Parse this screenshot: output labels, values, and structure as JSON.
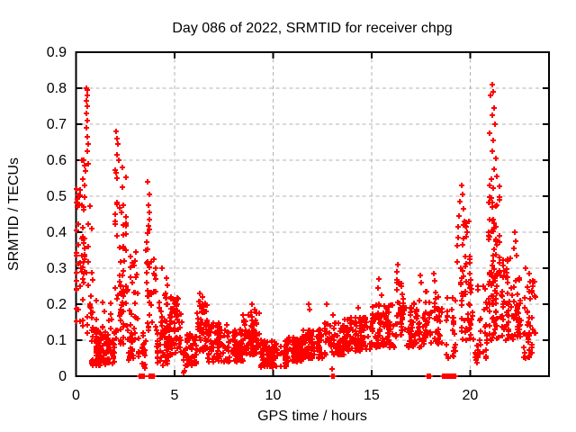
{
  "chart": {
    "title": "Day 086 of 2022, SRMTID for receiver chpg",
    "xlabel": "GPS time / hours",
    "ylabel": "SRMTID / TECUs"
  },
  "colors": {
    "marker": "#ff0000",
    "grid": "#b3b3b3",
    "axis": "#000000",
    "text": "#000000",
    "background": "#ffffff"
  },
  "chart_data": {
    "type": "scatter",
    "title": "Day 086 of 2022, SRMTID for receiver chpg",
    "xlabel": "GPS time / hours",
    "ylabel": "SRMTID / TECUs",
    "xlim": [
      0,
      24
    ],
    "ylim": [
      0,
      0.9
    ],
    "x_ticks": [
      [
        0,
        "0"
      ],
      [
        5,
        "5"
      ],
      [
        10,
        "10"
      ],
      [
        15,
        "15"
      ],
      [
        20,
        "20"
      ]
    ],
    "y_ticks": [
      [
        0,
        "0"
      ],
      [
        0.1,
        "0.1"
      ],
      [
        0.2,
        "0.2"
      ],
      [
        0.3,
        "0.3"
      ],
      [
        0.4,
        "0.4"
      ],
      [
        0.5,
        "0.5"
      ],
      [
        0.6,
        "0.6"
      ],
      [
        0.7,
        "0.7"
      ],
      [
        0.8,
        "0.8"
      ],
      [
        0.9,
        "0.9"
      ]
    ],
    "grid": {
      "style": "dashed",
      "x_at": [
        5,
        10,
        15,
        20
      ],
      "y_at": [
        0.1,
        0.2,
        0.3,
        0.4,
        0.5,
        0.6,
        0.7,
        0.8
      ]
    },
    "marker": {
      "shape": "plus",
      "color": "#ff0000",
      "size": 7
    },
    "legend": "none",
    "seed": 20220086,
    "bands": [
      [
        0.02,
        0.22,
        0.15,
        0.52,
        25,
        1.2
      ],
      [
        0.3,
        0.8,
        0.28,
        0.62,
        32,
        1.25
      ],
      [
        0.3,
        0.85,
        0.12,
        0.3,
        20,
        1.2
      ],
      [
        0.8,
        1.95,
        0.03,
        0.13,
        135,
        1.3
      ],
      [
        1.0,
        1.9,
        0.13,
        0.22,
        12,
        1.2
      ],
      [
        1.95,
        2.6,
        0.2,
        0.58,
        48,
        1.25
      ],
      [
        1.95,
        2.6,
        0.08,
        0.2,
        22,
        1.2
      ],
      [
        2.6,
        3.2,
        0.1,
        0.35,
        30,
        1.3
      ],
      [
        2.6,
        3.25,
        0.04,
        0.12,
        24,
        1.2
      ],
      [
        3.3,
        3.55,
        0.02,
        0.12,
        18,
        1.2
      ],
      [
        3.55,
        4.05,
        0.12,
        0.42,
        36,
        1.3
      ],
      [
        4.05,
        4.75,
        0.03,
        0.15,
        55,
        1.3
      ],
      [
        4.15,
        4.65,
        0.15,
        0.28,
        18,
        1.2
      ],
      [
        4.75,
        5.45,
        0.06,
        0.22,
        62,
        1.35
      ],
      [
        5.45,
        6.1,
        0.03,
        0.12,
        55,
        1.3
      ],
      [
        6.1,
        6.7,
        0.07,
        0.21,
        60,
        1.35
      ],
      [
        6.7,
        7.7,
        0.04,
        0.15,
        85,
        1.4
      ],
      [
        7.7,
        8.5,
        0.04,
        0.13,
        75,
        1.35
      ],
      [
        8.5,
        9.4,
        0.06,
        0.18,
        85,
        1.4
      ],
      [
        9.4,
        10.7,
        0.025,
        0.1,
        120,
        1.3
      ],
      [
        10.7,
        11.5,
        0.04,
        0.11,
        85,
        1.3
      ],
      [
        11.5,
        12.6,
        0.05,
        0.13,
        95,
        1.3
      ],
      [
        12.6,
        13.6,
        0.06,
        0.15,
        85,
        1.35
      ],
      [
        13.6,
        15.0,
        0.07,
        0.17,
        115,
        1.35
      ],
      [
        15.0,
        16.2,
        0.08,
        0.2,
        95,
        1.35
      ],
      [
        16.2,
        16.7,
        0.1,
        0.27,
        40,
        1.25
      ],
      [
        16.7,
        17.75,
        0.08,
        0.21,
        72,
        1.35
      ],
      [
        17.75,
        18.7,
        0.08,
        0.24,
        55,
        1.3
      ],
      [
        18.7,
        19.3,
        0.05,
        0.22,
        25,
        1.3
      ],
      [
        19.3,
        20.05,
        0.24,
        0.43,
        30,
        1.2
      ],
      [
        19.3,
        20.05,
        0.1,
        0.26,
        32,
        1.25
      ],
      [
        20.1,
        20.85,
        0.05,
        0.3,
        28,
        1.4
      ],
      [
        20.2,
        20.6,
        0.02,
        0.09,
        8,
        1.2
      ],
      [
        20.9,
        21.6,
        0.27,
        0.55,
        52,
        1.3
      ],
      [
        20.9,
        21.6,
        0.1,
        0.28,
        45,
        1.25
      ],
      [
        21.6,
        22.1,
        0.1,
        0.33,
        45,
        1.3
      ],
      [
        22.1,
        22.6,
        0.1,
        0.3,
        40,
        1.3
      ],
      [
        22.6,
        23.35,
        0.05,
        0.27,
        42,
        1.45
      ]
    ],
    "peak_points": [
      [
        0.52,
        0.8
      ],
      [
        0.56,
        0.795
      ],
      [
        0.55,
        0.78
      ],
      [
        0.54,
        0.765
      ],
      [
        0.58,
        0.75
      ],
      [
        0.53,
        0.73
      ],
      [
        0.57,
        0.71
      ],
      [
        0.52,
        0.69
      ],
      [
        0.56,
        0.665
      ],
      [
        0.6,
        0.645
      ],
      [
        0.55,
        0.625
      ],
      [
        0.62,
        0.59
      ],
      [
        0.5,
        0.57
      ],
      [
        0.03,
        0.52
      ],
      [
        0.05,
        0.47
      ],
      [
        2.05,
        0.68
      ],
      [
        2.1,
        0.66
      ],
      [
        2.12,
        0.645
      ],
      [
        2.08,
        0.615
      ],
      [
        2.16,
        0.6
      ],
      [
        3.62,
        0.54
      ],
      [
        3.7,
        0.505
      ],
      [
        3.66,
        0.475
      ],
      [
        3.74,
        0.455
      ],
      [
        3.71,
        0.435
      ],
      [
        4.35,
        0.3
      ],
      [
        6.3,
        0.23
      ],
      [
        6.42,
        0.22
      ],
      [
        8.95,
        0.2
      ],
      [
        9.05,
        0.185
      ],
      [
        11.8,
        0.2
      ],
      [
        11.85,
        0.185
      ],
      [
        12.7,
        0.2
      ],
      [
        13.05,
        0.17
      ],
      [
        14.3,
        0.19
      ],
      [
        15.35,
        0.27
      ],
      [
        15.3,
        0.245
      ],
      [
        15.5,
        0.225
      ],
      [
        16.35,
        0.31
      ],
      [
        16.3,
        0.29
      ],
      [
        17.45,
        0.28
      ],
      [
        17.5,
        0.26
      ],
      [
        18.15,
        0.285
      ],
      [
        18.2,
        0.265
      ],
      [
        5.45,
        0.01
      ],
      [
        5.52,
        0.015
      ],
      [
        13.0,
        0.02
      ],
      [
        19.55,
        0.53
      ],
      [
        19.6,
        0.505
      ],
      [
        19.5,
        0.485
      ],
      [
        19.65,
        0.465
      ],
      [
        19.45,
        0.445
      ],
      [
        19.7,
        0.43
      ],
      [
        19.78,
        0.415
      ],
      [
        19.85,
        0.4
      ],
      [
        21.1,
        0.81
      ],
      [
        21.15,
        0.79
      ],
      [
        21.05,
        0.78
      ],
      [
        21.2,
        0.745
      ],
      [
        21.1,
        0.725
      ],
      [
        21.25,
        0.7
      ],
      [
        21.0,
        0.675
      ],
      [
        21.15,
        0.655
      ],
      [
        21.1,
        0.625
      ],
      [
        21.3,
        0.605
      ],
      [
        21.22,
        0.575
      ],
      [
        21.35,
        0.555
      ],
      [
        22.25,
        0.4
      ],
      [
        22.3,
        0.375
      ],
      [
        22.2,
        0.355
      ],
      [
        22.35,
        0.335
      ],
      [
        22.8,
        0.3
      ],
      [
        23.0,
        0.285
      ],
      [
        23.2,
        0.25
      ],
      [
        23.3,
        0.22
      ]
    ],
    "zero_runs": [
      [
        3.22,
        3.45
      ],
      [
        3.72,
        3.95
      ],
      [
        12.98,
        13.08
      ],
      [
        17.82,
        17.96
      ],
      [
        18.62,
        19.28
      ]
    ],
    "zero_run_step": 0.012
  }
}
